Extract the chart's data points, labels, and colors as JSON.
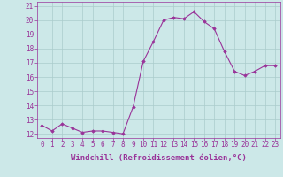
{
  "x": [
    0,
    1,
    2,
    3,
    4,
    5,
    6,
    7,
    8,
    9,
    10,
    11,
    12,
    13,
    14,
    15,
    16,
    17,
    18,
    19,
    20,
    21,
    22,
    23
  ],
  "y": [
    12.6,
    12.2,
    12.7,
    12.4,
    12.1,
    12.2,
    12.2,
    12.1,
    12.0,
    13.9,
    17.1,
    18.5,
    20.0,
    20.2,
    20.1,
    20.6,
    19.9,
    19.4,
    17.8,
    16.4,
    16.1,
    16.4,
    16.8,
    16.8
  ],
  "line_color": "#993399",
  "marker": "D",
  "marker_size": 1.8,
  "bg_color": "#cce8e8",
  "grid_color": "#aacccc",
  "xlabel": "Windchill (Refroidissement éolien,°C)",
  "xlabel_color": "#993399",
  "yticks": [
    12,
    13,
    14,
    15,
    16,
    17,
    18,
    19,
    20,
    21
  ],
  "xticks": [
    0,
    1,
    2,
    3,
    4,
    5,
    6,
    7,
    8,
    9,
    10,
    11,
    12,
    13,
    14,
    15,
    16,
    17,
    18,
    19,
    20,
    21,
    22,
    23
  ],
  "ylim": [
    11.7,
    21.3
  ],
  "xlim": [
    -0.5,
    23.5
  ],
  "tick_fontsize": 5.5,
  "xlabel_fontsize": 6.5
}
